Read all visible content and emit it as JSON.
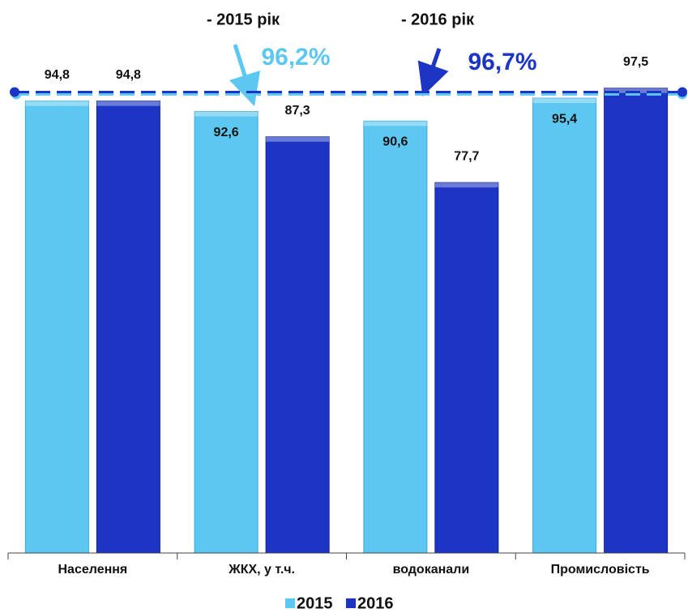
{
  "chart_data": {
    "type": "bar",
    "categories": [
      "Населення",
      "ЖКХ, у т.ч.",
      "водоканали",
      "Промисловість"
    ],
    "series": [
      {
        "name": "2015",
        "color": "#5cc8f2",
        "values": [
          94.8,
          92.6,
          90.6,
          95.4
        ],
        "value_labels": [
          "94,8",
          "92,6",
          "90,6",
          "95,4"
        ]
      },
      {
        "name": "2016",
        "color": "#1c35c4",
        "values": [
          94.8,
          87.3,
          77.7,
          97.5
        ],
        "value_labels": [
          "94,8",
          "87,3",
          "77,7",
          "97,5"
        ]
      }
    ],
    "reference_lines": [
      {
        "name": "- 2015 рік",
        "value": 96.2,
        "label": "96,2%",
        "color": "#5cc8f2"
      },
      {
        "name": "- 2016 рік",
        "value": 96.7,
        "label": "96,7%",
        "color": "#1c35c4"
      }
    ],
    "ylim": [
      0,
      116
    ],
    "legend": "bottom"
  }
}
